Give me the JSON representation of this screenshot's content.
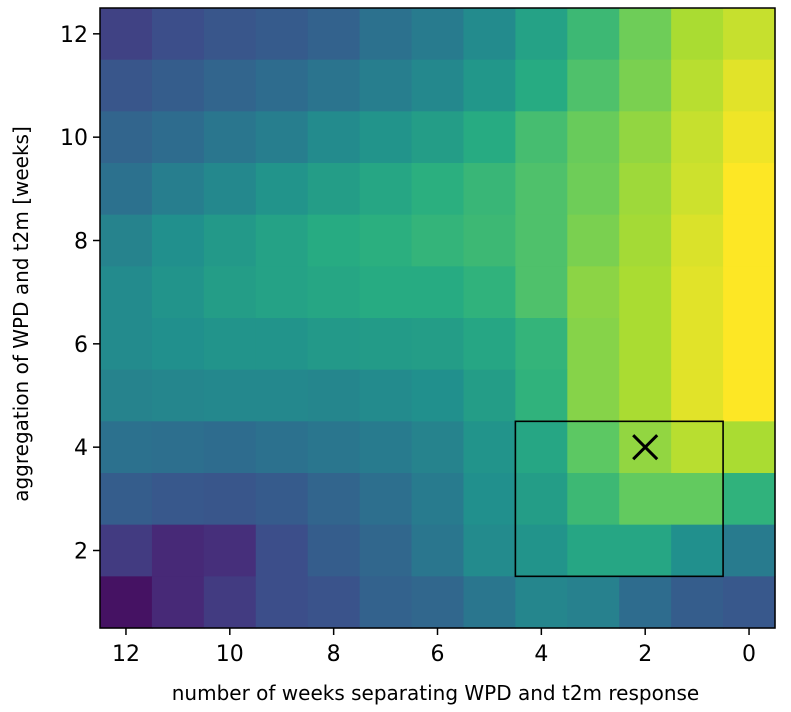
{
  "chart_data": {
    "type": "heatmap",
    "title": "",
    "xlabel": "number of weeks separating WPD and t2m response",
    "ylabel": "aggregation of WPD and t2m [weeks]",
    "x_values": [
      12,
      11,
      10,
      9,
      8,
      7,
      6,
      5,
      4,
      3,
      2,
      1,
      0
    ],
    "y_values": [
      12,
      11,
      10,
      9,
      8,
      7,
      6,
      5,
      4,
      3,
      2,
      1
    ],
    "x_ticks": [
      "12",
      "10",
      "8",
      "6",
      "4",
      "2",
      "0"
    ],
    "y_ticks": [
      "12",
      "10",
      "8",
      "6",
      "4",
      "2"
    ],
    "xlim": [
      12.5,
      -0.5
    ],
    "ylim": [
      0.5,
      12.5
    ],
    "colormap": "viridis",
    "value_range": [
      0,
      1
    ],
    "z": [
      [
        0.2,
        0.24,
        0.27,
        0.29,
        0.32,
        0.38,
        0.42,
        0.48,
        0.58,
        0.68,
        0.78,
        0.88,
        0.92
      ],
      [
        0.27,
        0.3,
        0.33,
        0.36,
        0.39,
        0.43,
        0.47,
        0.53,
        0.62,
        0.72,
        0.8,
        0.9,
        0.96
      ],
      [
        0.33,
        0.36,
        0.4,
        0.43,
        0.48,
        0.52,
        0.56,
        0.62,
        0.7,
        0.77,
        0.84,
        0.92,
        0.98
      ],
      [
        0.38,
        0.43,
        0.47,
        0.52,
        0.56,
        0.6,
        0.64,
        0.67,
        0.72,
        0.78,
        0.86,
        0.93,
        1.0
      ],
      [
        0.45,
        0.5,
        0.54,
        0.58,
        0.62,
        0.64,
        0.66,
        0.68,
        0.72,
        0.8,
        0.87,
        0.95,
        1.0
      ],
      [
        0.48,
        0.52,
        0.56,
        0.58,
        0.6,
        0.62,
        0.62,
        0.65,
        0.72,
        0.83,
        0.88,
        0.96,
        1.0
      ],
      [
        0.48,
        0.5,
        0.52,
        0.52,
        0.54,
        0.55,
        0.56,
        0.6,
        0.66,
        0.82,
        0.88,
        0.96,
        1.0
      ],
      [
        0.45,
        0.46,
        0.47,
        0.47,
        0.46,
        0.48,
        0.5,
        0.56,
        0.65,
        0.82,
        0.88,
        0.96,
        1.0
      ],
      [
        0.38,
        0.37,
        0.36,
        0.38,
        0.4,
        0.42,
        0.45,
        0.52,
        0.6,
        0.75,
        0.84,
        0.9,
        0.88
      ],
      [
        0.3,
        0.28,
        0.27,
        0.29,
        0.33,
        0.37,
        0.42,
        0.5,
        0.56,
        0.68,
        0.76,
        0.76,
        0.65
      ],
      [
        0.18,
        0.12,
        0.14,
        0.24,
        0.3,
        0.34,
        0.4,
        0.48,
        0.52,
        0.6,
        0.6,
        0.5,
        0.42
      ],
      [
        0.05,
        0.12,
        0.18,
        0.24,
        0.26,
        0.32,
        0.34,
        0.4,
        0.46,
        0.44,
        0.36,
        0.3,
        0.28
      ]
    ],
    "annotations": [
      {
        "type": "marker",
        "symbol": "x",
        "x": 2,
        "y": 4
      },
      {
        "type": "rectangle",
        "x_range": [
          0.5,
          4.5
        ],
        "y_range": [
          1.5,
          4.5
        ]
      }
    ]
  }
}
